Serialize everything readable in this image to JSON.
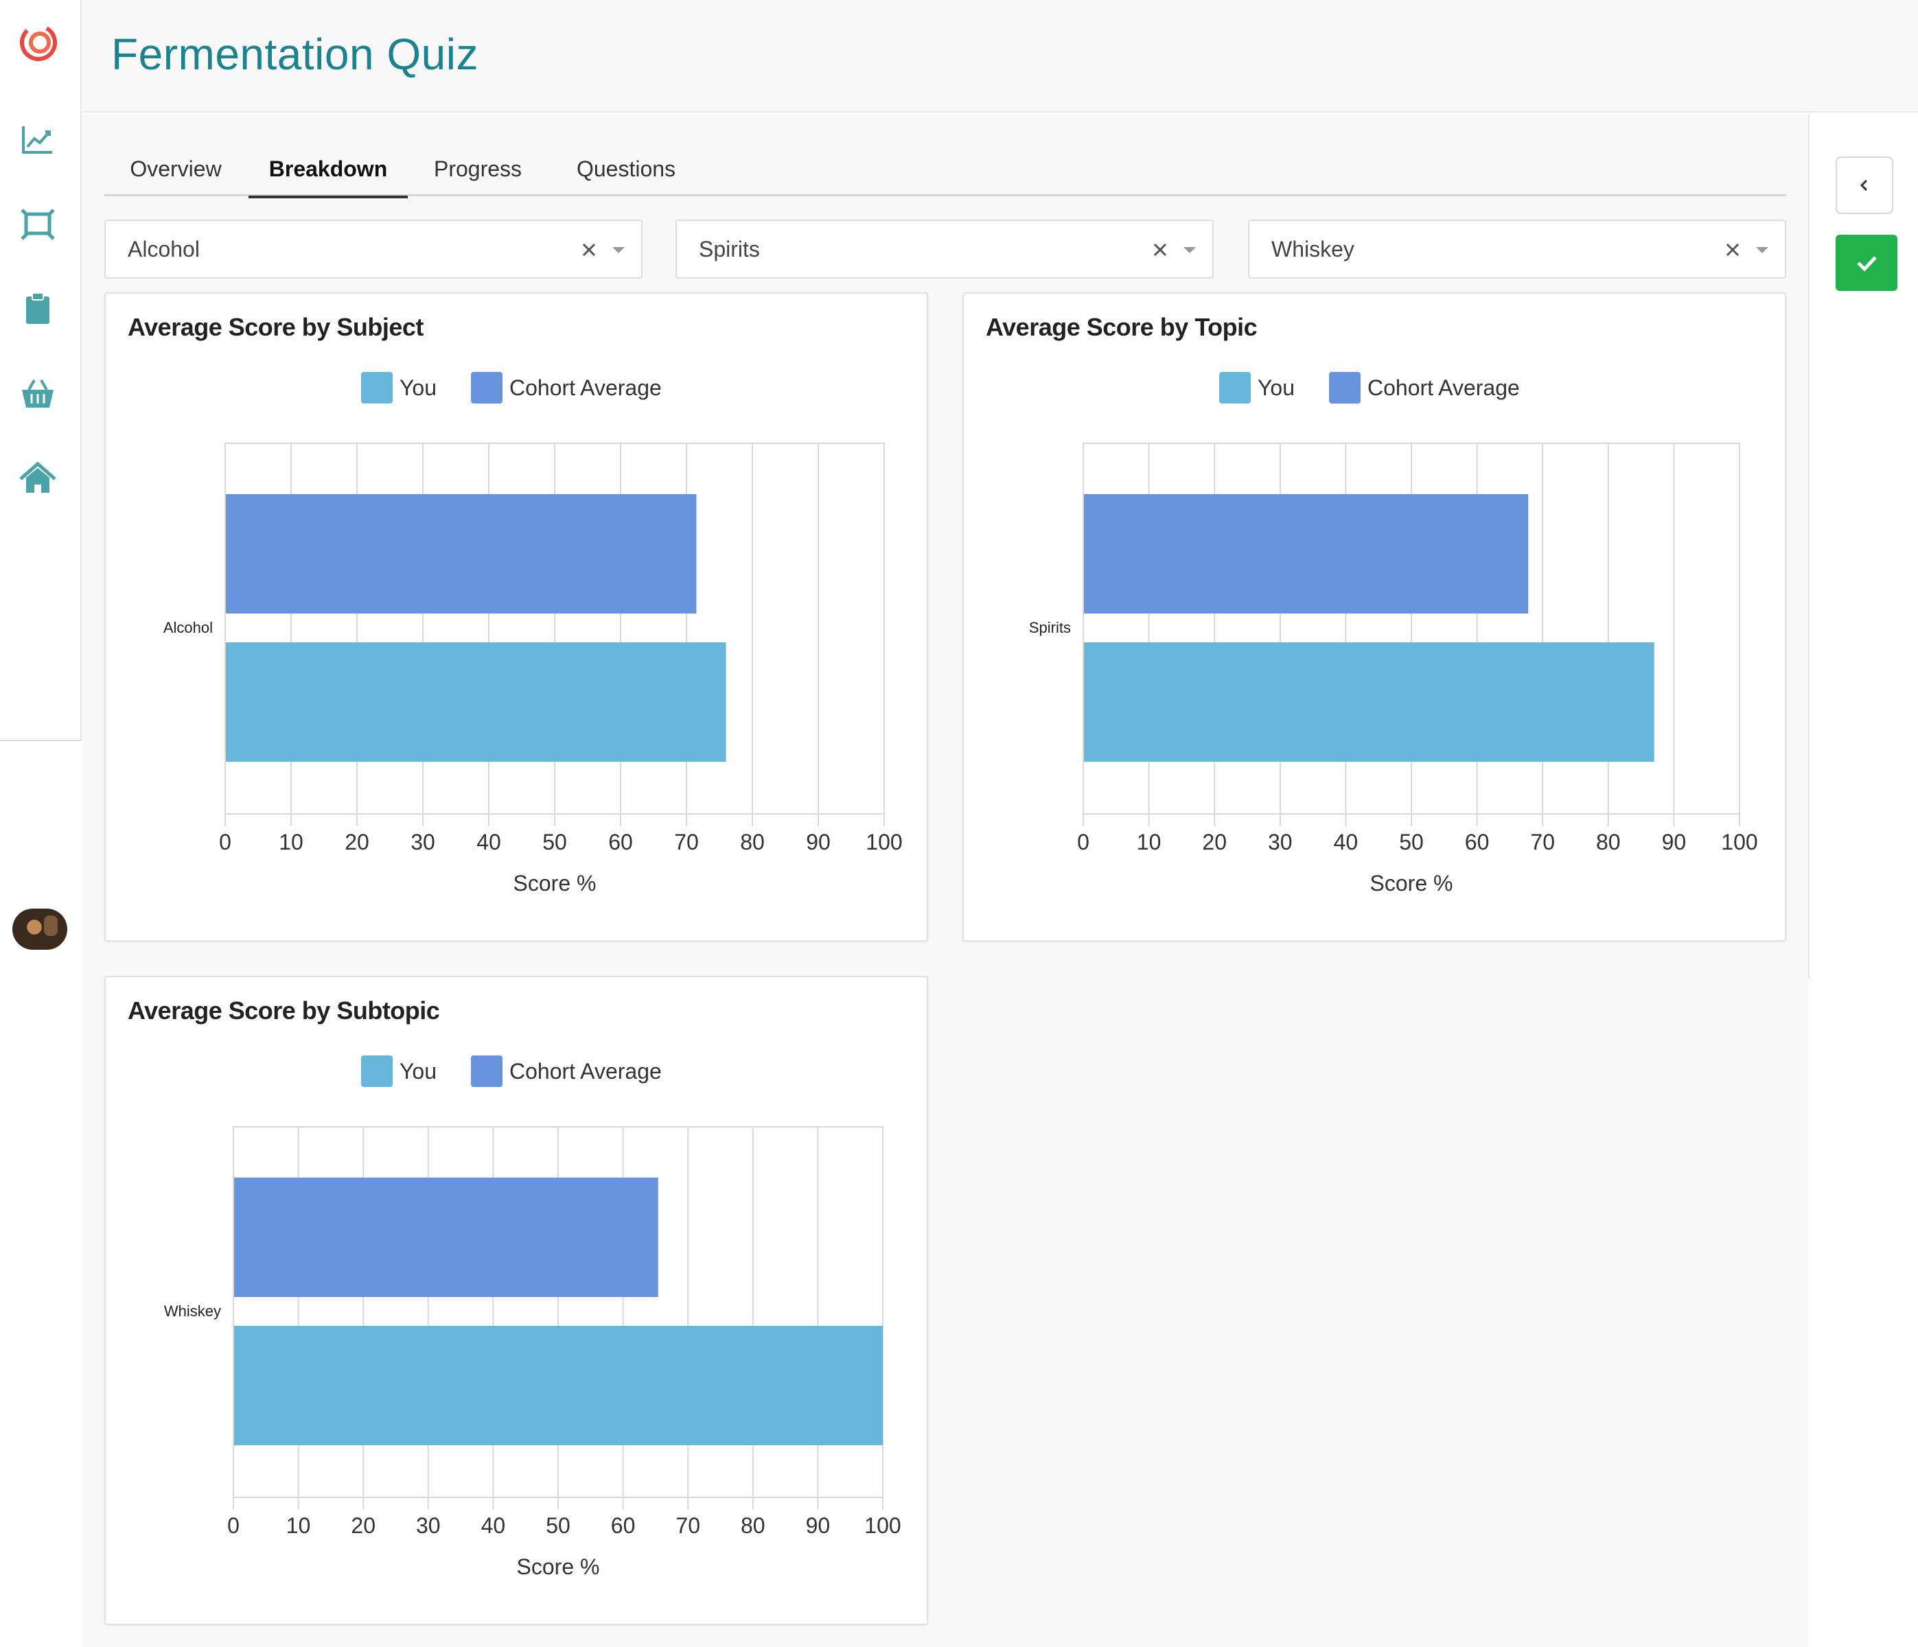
{
  "app": {
    "title": "Fermentation Quiz"
  },
  "sidebar": {
    "items": [
      {
        "icon": "line-chart-icon"
      },
      {
        "icon": "frame-icon"
      },
      {
        "icon": "clipboard-icon"
      },
      {
        "icon": "basket-icon"
      },
      {
        "icon": "home-icon"
      }
    ]
  },
  "tabs": [
    {
      "label": "Overview",
      "active": false
    },
    {
      "label": "Breakdown",
      "active": true
    },
    {
      "label": "Progress",
      "active": false
    },
    {
      "label": "Questions",
      "active": false
    }
  ],
  "filters": [
    {
      "value": "Alcohol"
    },
    {
      "value": "Spirits"
    },
    {
      "value": "Whiskey"
    }
  ],
  "colors": {
    "accent": "#1b8290",
    "you": "#67b7dc",
    "cohort": "#6794dc",
    "confirm": "#21b24b"
  },
  "chart_data": [
    {
      "type": "bar",
      "orientation": "horizontal",
      "title": "Average Score by Subject",
      "categories": [
        "Alcohol"
      ],
      "series": [
        {
          "name": "You",
          "values": [
            76
          ]
        },
        {
          "name": "Cohort Average",
          "values": [
            71.5
          ]
        }
      ],
      "xlabel": "Score %",
      "xlim": [
        0,
        100
      ],
      "ticks": [
        "0",
        "10",
        "20",
        "30",
        "40",
        "50",
        "60",
        "70",
        "80",
        "90",
        "100"
      ],
      "legend": "top-center",
      "grid": true
    },
    {
      "type": "bar",
      "orientation": "horizontal",
      "title": "Average Score by Topic",
      "categories": [
        "Spirits"
      ],
      "series": [
        {
          "name": "You",
          "values": [
            87
          ]
        },
        {
          "name": "Cohort Average",
          "values": [
            67.8
          ]
        }
      ],
      "xlabel": "Score %",
      "xlim": [
        0,
        100
      ],
      "ticks": [
        "0",
        "10",
        "20",
        "30",
        "40",
        "50",
        "60",
        "70",
        "80",
        "90",
        "100"
      ],
      "legend": "top-center",
      "grid": true
    },
    {
      "type": "bar",
      "orientation": "horizontal",
      "title": "Average Score by Subtopic",
      "categories": [
        "Whiskey"
      ],
      "series": [
        {
          "name": "You",
          "values": [
            100
          ]
        },
        {
          "name": "Cohort Average",
          "values": [
            65.4
          ]
        }
      ],
      "xlabel": "Score %",
      "xlim": [
        0,
        100
      ],
      "ticks": [
        "0",
        "10",
        "20",
        "30",
        "40",
        "50",
        "60",
        "70",
        "80",
        "90",
        "100"
      ],
      "legend": "top-center",
      "grid": true
    }
  ]
}
